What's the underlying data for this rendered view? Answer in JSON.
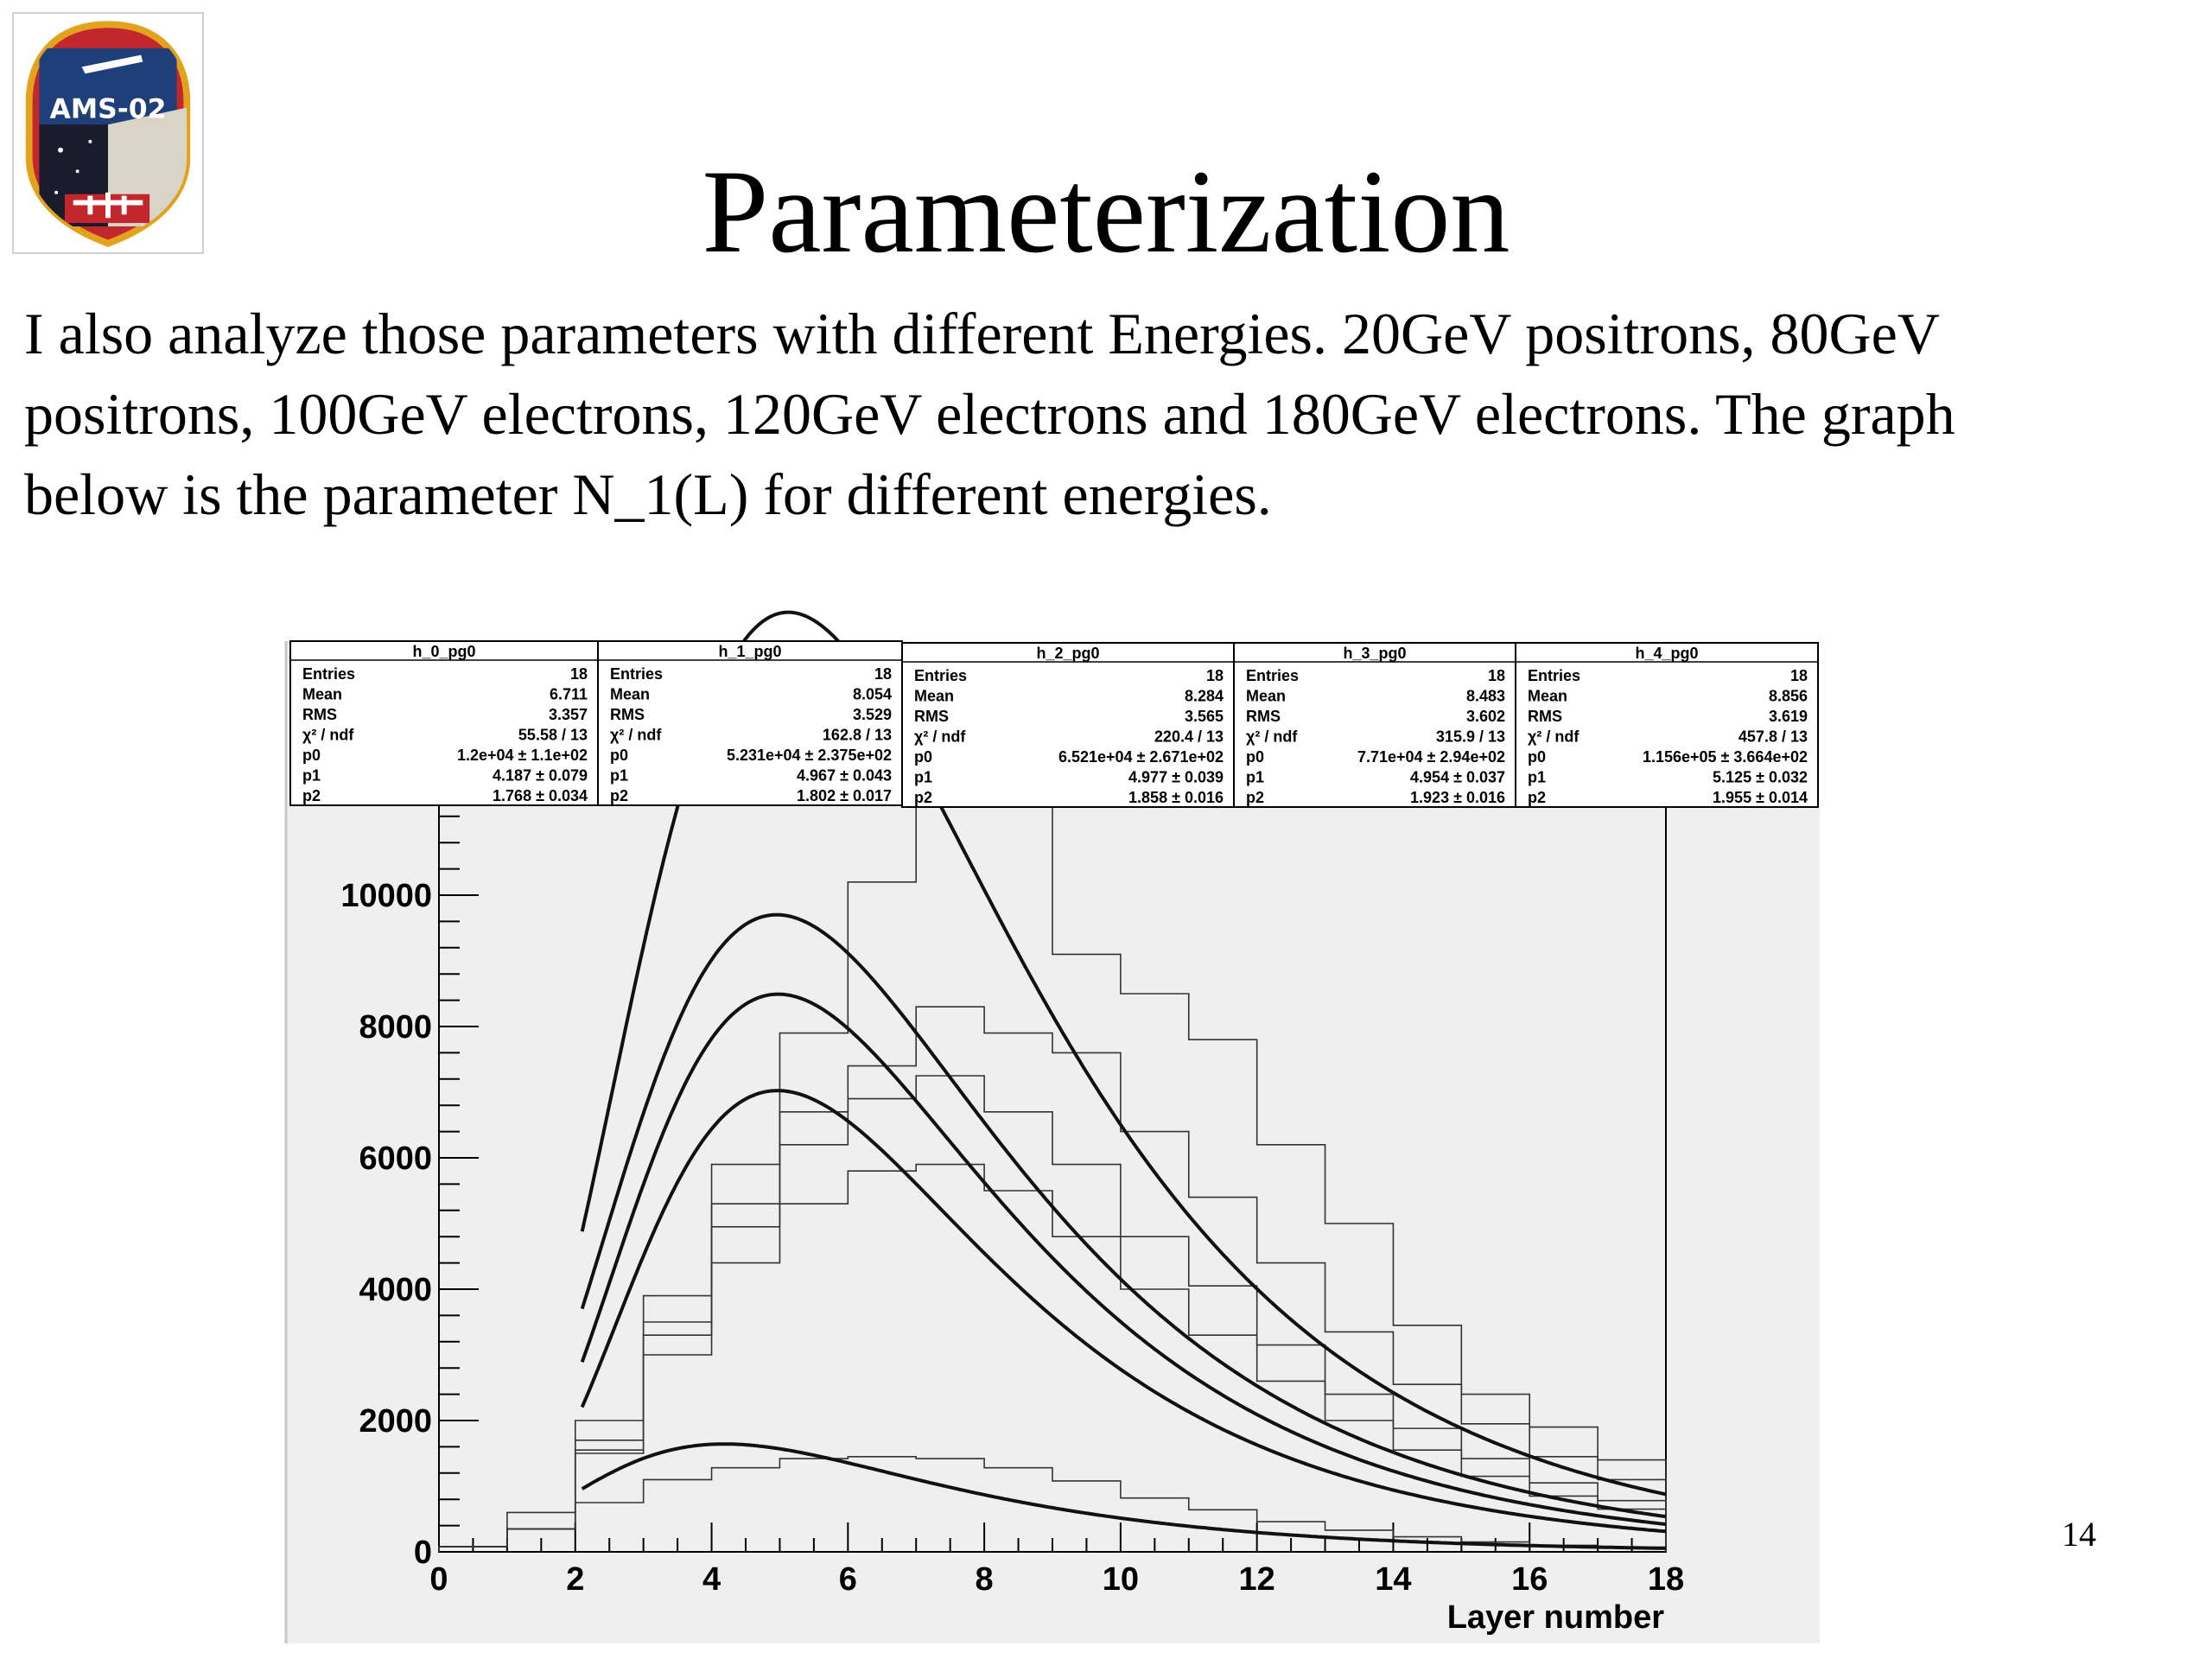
{
  "slide": {
    "title": "Parameterization",
    "body_lines": [
      "I also analyze those parameters with different Energies. 20GeV positrons, 80GeV",
      "positrons, 100GeV electrons, 120GeV electrons and 180GeV electrons. The graph",
      "below is the parameter N_1(L) for different energies."
    ],
    "page_number": "14",
    "logo_text": "AMS-02"
  },
  "chart_data": {
    "type": "line",
    "xlabel": "Layer number",
    "ylabel": "",
    "xlim": [
      0,
      18
    ],
    "ylim": [
      0,
      11500
    ],
    "xticks": [
      "0",
      "2",
      "4",
      "6",
      "8",
      "10",
      "12",
      "14",
      "16",
      "18"
    ],
    "yticks": [
      "0",
      "2000",
      "4000",
      "6000",
      "8000",
      "10000"
    ],
    "grid": false,
    "stats_boxes": [
      {
        "name": "h_0_pg0",
        "rows": [
          [
            "Entries",
            "18"
          ],
          [
            "Mean",
            "6.711"
          ],
          [
            "RMS",
            "3.357"
          ],
          [
            "χ² / ndf",
            "55.58 / 13"
          ],
          [
            "p0",
            "1.2e+04 ± 1.1e+02"
          ],
          [
            "p1",
            "4.187 ± 0.079"
          ],
          [
            "p2",
            "1.768 ± 0.034"
          ]
        ]
      },
      {
        "name": "h_1_pg0",
        "rows": [
          [
            "Entries",
            "18"
          ],
          [
            "Mean",
            "8.054"
          ],
          [
            "RMS",
            "3.529"
          ],
          [
            "χ² / ndf",
            "162.8 / 13"
          ],
          [
            "p0",
            "5.231e+04 ± 2.375e+02"
          ],
          [
            "p1",
            "4.967 ± 0.043"
          ],
          [
            "p2",
            "1.802 ± 0.017"
          ]
        ]
      },
      {
        "name": "h_2_pg0",
        "rows": [
          [
            "Entries",
            "18"
          ],
          [
            "Mean",
            "8.284"
          ],
          [
            "RMS",
            "3.565"
          ],
          [
            "χ² / ndf",
            "220.4 / 13"
          ],
          [
            "p0",
            "6.521e+04 ± 2.671e+02"
          ],
          [
            "p1",
            "4.977 ± 0.039"
          ],
          [
            "p2",
            "1.858 ± 0.016"
          ]
        ]
      },
      {
        "name": "h_3_pg0",
        "rows": [
          [
            "Entries",
            "18"
          ],
          [
            "Mean",
            "8.483"
          ],
          [
            "RMS",
            "3.602"
          ],
          [
            "χ² / ndf",
            "315.9 / 13"
          ],
          [
            "p0",
            "7.71e+04 ± 2.94e+02"
          ],
          [
            "p1",
            "4.954 ± 0.037"
          ],
          [
            "p2",
            "1.923 ± 0.016"
          ]
        ]
      },
      {
        "name": "h_4_pg0",
        "rows": [
          [
            "Entries",
            "18"
          ],
          [
            "Mean",
            "8.856"
          ],
          [
            "RMS",
            "3.619"
          ],
          [
            "χ² / ndf",
            "457.8 / 13"
          ],
          [
            "p0",
            "1.156e+05 ± 3.664e+02"
          ],
          [
            "p1",
            "5.125 ± 0.032"
          ],
          [
            "p2",
            "1.955 ± 0.014"
          ]
        ]
      }
    ],
    "series": [
      {
        "name": "h_0_pg0",
        "bin_values": [
          80,
          350,
          750,
          1100,
          1280,
          1420,
          1450,
          1420,
          1280,
          1080,
          820,
          640,
          460,
          330,
          230,
          150,
          100,
          70
        ],
        "fit_p0": 12000,
        "fit_p1": 4.187,
        "fit_p2": 1.768
      },
      {
        "name": "h_1_pg0",
        "bin_values": [
          80,
          350,
          1500,
          3000,
          4400,
          5300,
          5800,
          5900,
          5500,
          4800,
          4000,
          3300,
          2600,
          2000,
          1550,
          1150,
          850,
          650
        ],
        "fit_p0": 52310,
        "fit_p1": 4.967,
        "fit_p2": 1.802
      },
      {
        "name": "h_2_pg0",
        "bin_values": [
          80,
          350,
          1550,
          3300,
          4950,
          6200,
          6900,
          7250,
          6700,
          5900,
          4800,
          4050,
          3150,
          2400,
          1880,
          1420,
          1050,
          780
        ],
        "fit_p0": 65210,
        "fit_p1": 4.977,
        "fit_p2": 1.858
      },
      {
        "name": "h_3_pg0",
        "bin_values": [
          80,
          350,
          1700,
          3500,
          5300,
          6700,
          7400,
          8300,
          7900,
          7600,
          6400,
          5400,
          4400,
          3350,
          2550,
          1950,
          1450,
          1100
        ],
        "fit_p0": 77100,
        "fit_p1": 4.954,
        "fit_p2": 1.923
      },
      {
        "name": "h_4_pg0",
        "bin_values": [
          80,
          600,
          2000,
          3900,
          5900,
          7900,
          10200,
          11350,
          12000,
          9100,
          8500,
          7800,
          6200,
          5000,
          3450,
          2400,
          1900,
          1400
        ],
        "fit_p0": 115600,
        "fit_p1": 5.125,
        "fit_p2": 1.955
      }
    ]
  }
}
